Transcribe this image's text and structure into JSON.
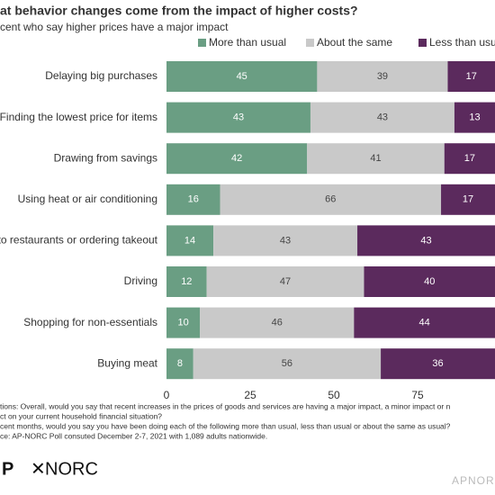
{
  "chart_data": {
    "type": "stacked-bar-horizontal",
    "title": "at behavior changes come from the impact of higher costs?",
    "subtitle": "cent who say higher prices have a major impact",
    "categories": [
      "Delaying big purchases",
      "Finding the lowest price for items",
      "Drawing from savings",
      "Using heat or air conditioning",
      "to restaurants or ordering takeout",
      "Driving",
      "Shopping for non-essentials",
      "Buying meat"
    ],
    "series": [
      {
        "name": "More than usual",
        "color": "#6a9e83",
        "values": [
          45,
          43,
          42,
          16,
          14,
          12,
          10,
          8
        ]
      },
      {
        "name": "About the same",
        "color": "#c9c9c9",
        "values": [
          39,
          43,
          41,
          66,
          43,
          47,
          46,
          56
        ]
      },
      {
        "name": "Less than usual",
        "color": "#5b2a5d",
        "values": [
          17,
          13,
          17,
          17,
          43,
          40,
          44,
          36
        ]
      }
    ],
    "xlim": [
      0,
      100
    ],
    "xticks": [
      0,
      25,
      50,
      75
    ],
    "notes": [
      "tions: Overall, would you say that recent increases in the prices of goods and services are having a major impact, a minor impact or n",
      "ct on your current household financial situation?",
      "cent months, would you say you have been doing each of the following more than usual, less than usual or about the same as usual?",
      "ce: AP-NORC Poll consuted December 2-7, 2021 with 1,089 adults nationwide."
    ],
    "logos": [
      "P",
      "NORC",
      "APNORC"
    ]
  }
}
